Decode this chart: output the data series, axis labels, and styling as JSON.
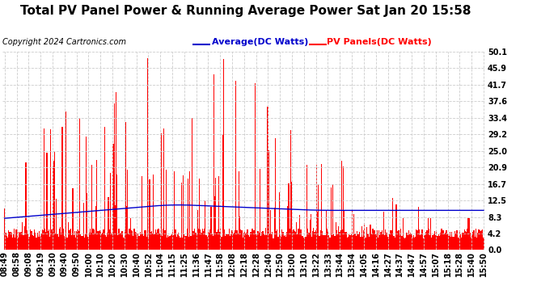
{
  "title": "Total PV Panel Power & Running Average Power Sat Jan 20 15:58",
  "copyright": "Copyright 2024 Cartronics.com",
  "legend_avg": "Average(DC Watts)",
  "legend_pv": "PV Panels(DC Watts)",
  "ylabel_right_ticks": [
    0.0,
    4.2,
    8.3,
    12.5,
    16.7,
    20.9,
    25.0,
    29.2,
    33.4,
    37.6,
    41.7,
    45.9,
    50.1
  ],
  "ylim": [
    0.0,
    50.1
  ],
  "bg_color": "#ffffff",
  "plot_bg_color": "#ffffff",
  "bar_color": "#ff0000",
  "avg_line_color": "#0000cc",
  "grid_color": "#cccccc",
  "title_fontsize": 11,
  "tick_fontsize": 7,
  "copyright_fontsize": 7,
  "legend_fontsize": 8,
  "x_tick_labels": [
    "08:49",
    "08:58",
    "09:08",
    "09:19",
    "09:30",
    "09:40",
    "09:50",
    "10:00",
    "10:10",
    "10:20",
    "10:30",
    "10:40",
    "10:52",
    "11:04",
    "11:15",
    "11:25",
    "11:36",
    "11:47",
    "11:58",
    "12:08",
    "12:18",
    "12:28",
    "12:40",
    "12:50",
    "13:00",
    "13:10",
    "13:22",
    "13:33",
    "13:44",
    "13:54",
    "14:05",
    "14:16",
    "14:27",
    "14:37",
    "14:47",
    "14:57",
    "15:07",
    "15:18",
    "15:28",
    "15:40",
    "15:50"
  ],
  "n_points": 500,
  "avg_line_y": 8.5,
  "base_bar_height": 4.2,
  "spike_seed": 17
}
